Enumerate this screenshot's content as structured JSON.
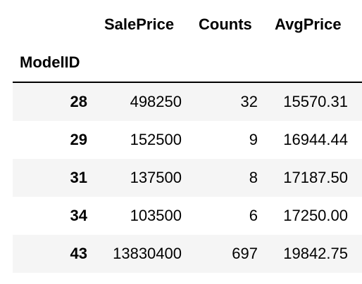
{
  "table": {
    "columns": [
      "SalePrice",
      "Counts",
      "AvgPrice"
    ],
    "index_name": "ModelID",
    "rows": [
      {
        "index": "28",
        "values": [
          "498250",
          "32",
          "15570.31"
        ]
      },
      {
        "index": "29",
        "values": [
          "152500",
          "9",
          "16944.44"
        ]
      },
      {
        "index": "31",
        "values": [
          "137500",
          "8",
          "17187.50"
        ]
      },
      {
        "index": "34",
        "values": [
          "103500",
          "6",
          "17250.00"
        ]
      },
      {
        "index": "43",
        "values": [
          "13830400",
          "697",
          "19842.75"
        ]
      }
    ]
  }
}
